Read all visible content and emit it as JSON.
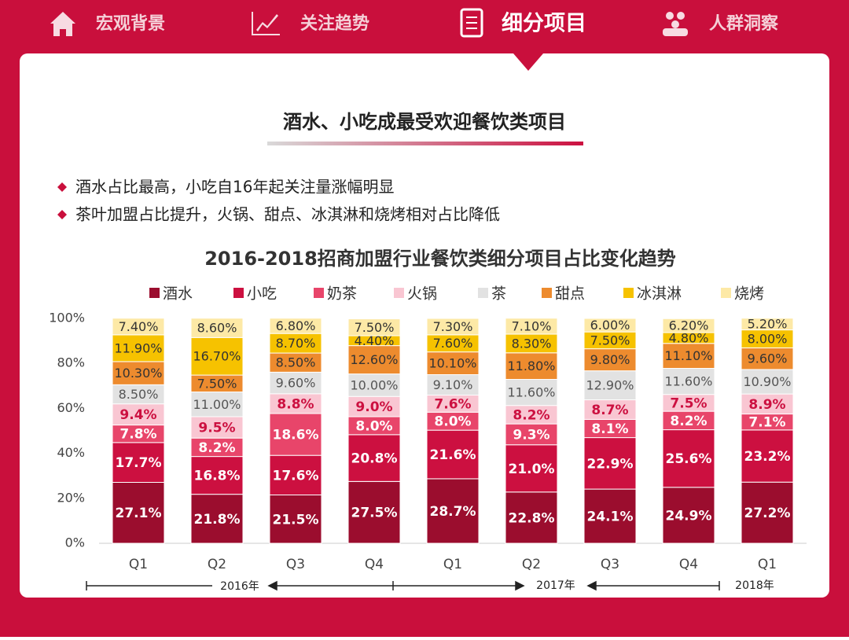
{
  "nav": [
    "宏观背景",
    "关注趋势",
    "细分项目",
    "人群洞察"
  ],
  "heading": "酒水、小吃成最受欢迎餐饮类项目",
  "bullets": [
    "酒水占比最高，小吃自16年起关注量涨幅明显",
    "茶叶加盟占比提升，火锅、甜点、冰淇淋和烧烤相对占比降低"
  ],
  "chart_data": {
    "type": "stacked_bar",
    "title": "2016-2018招商加盟行业餐饮类细分项目占比变化趋势",
    "categories": [
      "Q1",
      "Q2",
      "Q3",
      "Q4",
      "Q1",
      "Q2",
      "Q3",
      "Q4",
      "Q1"
    ],
    "annotations": [
      "2016年",
      "2017年",
      "2018年"
    ],
    "ylim": [
      0,
      100
    ],
    "yticks": [
      {
        "value": 0,
        "label": "0%"
      },
      {
        "value": 20,
        "label": "20%"
      },
      {
        "value": 40,
        "label": "40%"
      },
      {
        "value": 60,
        "label": "60%"
      },
      {
        "value": 80,
        "label": "80%"
      },
      {
        "value": 100,
        "label": "100%"
      }
    ],
    "series": [
      {
        "name": "酒水",
        "color": "#9b0d2e",
        "label_color": "#ffffff",
        "values": [
          27.1,
          21.8,
          21.5,
          27.5,
          28.7,
          22.8,
          24.1,
          24.9,
          27.2
        ],
        "value_labels": [
          "27.1%",
          "21.8%",
          "21.5%",
          "27.5%",
          "28.7%",
          "22.8%",
          "24.1%",
          "24.9%",
          "27.2%"
        ]
      },
      {
        "name": "小吃",
        "color": "#cc1040",
        "label_color": "#ffffff",
        "values": [
          17.7,
          16.8,
          17.6,
          20.8,
          21.6,
          21.0,
          22.9,
          25.6,
          23.2
        ],
        "value_labels": [
          "17.7%",
          "16.8%",
          "17.6%",
          "20.8%",
          "21.6%",
          "21.0%",
          "22.9%",
          "25.6%",
          "23.2%"
        ]
      },
      {
        "name": "奶茶",
        "color": "#e8456a",
        "label_color": "#ffffff",
        "values": [
          7.8,
          8.2,
          18.6,
          8.0,
          8.0,
          9.3,
          8.1,
          8.2,
          7.1
        ],
        "value_labels": [
          "7.8%",
          "8.2%",
          "18.6%",
          "8.0%",
          "8.0%",
          "9.3%",
          "8.1%",
          "8.2%",
          "7.1%"
        ]
      },
      {
        "name": "火锅",
        "color": "#f9c6d2",
        "label_color": "#cc1040",
        "values": [
          9.4,
          9.5,
          8.8,
          9.0,
          7.6,
          8.2,
          8.7,
          7.5,
          8.9
        ],
        "value_labels": [
          "9.4%",
          "9.5%",
          "8.8%",
          "9.0%",
          "7.6%",
          "8.2%",
          "8.7%",
          "7.5%",
          "8.9%"
        ]
      },
      {
        "name": "茶",
        "color": "#e2e2e2",
        "label_color": "#555555",
        "values": [
          8.5,
          11.0,
          9.6,
          10.0,
          9.1,
          11.6,
          12.9,
          11.6,
          10.9
        ],
        "value_labels": [
          "8.50%",
          "11.00%",
          "9.60%",
          "10.00%",
          "9.10%",
          "11.60%",
          "12.90%",
          "11.60%",
          "10.90%"
        ]
      },
      {
        "name": "甜点",
        "color": "#ed8b2e",
        "label_color": "#333333",
        "values": [
          10.3,
          7.5,
          8.5,
          12.6,
          10.1,
          11.8,
          9.8,
          11.1,
          9.6
        ],
        "value_labels": [
          "10.30%",
          "7.50%",
          "8.50%",
          "12.60%",
          "10.10%",
          "11.80%",
          "9.80%",
          "11.10%",
          "9.60%"
        ]
      },
      {
        "name": "冰淇淋",
        "color": "#f6c200",
        "label_color": "#333333",
        "values": [
          11.9,
          16.7,
          8.7,
          4.4,
          7.6,
          8.3,
          7.5,
          4.8,
          8.0
        ],
        "value_labels": [
          "11.90%",
          "16.70%",
          "8.70%",
          "4.40%",
          "7.60%",
          "8.30%",
          "7.50%",
          "4.80%",
          "8.00%"
        ]
      },
      {
        "name": "烧烤",
        "color": "#fde9a6",
        "label_color": "#333333",
        "values": [
          7.4,
          8.6,
          6.8,
          7.5,
          7.3,
          7.1,
          6.0,
          6.2,
          5.2
        ],
        "value_labels": [
          "7.40%",
          "8.60%",
          "6.80%",
          "7.50%",
          "7.30%",
          "7.10%",
          "6.00%",
          "6.20%",
          "5.20%"
        ]
      }
    ]
  }
}
